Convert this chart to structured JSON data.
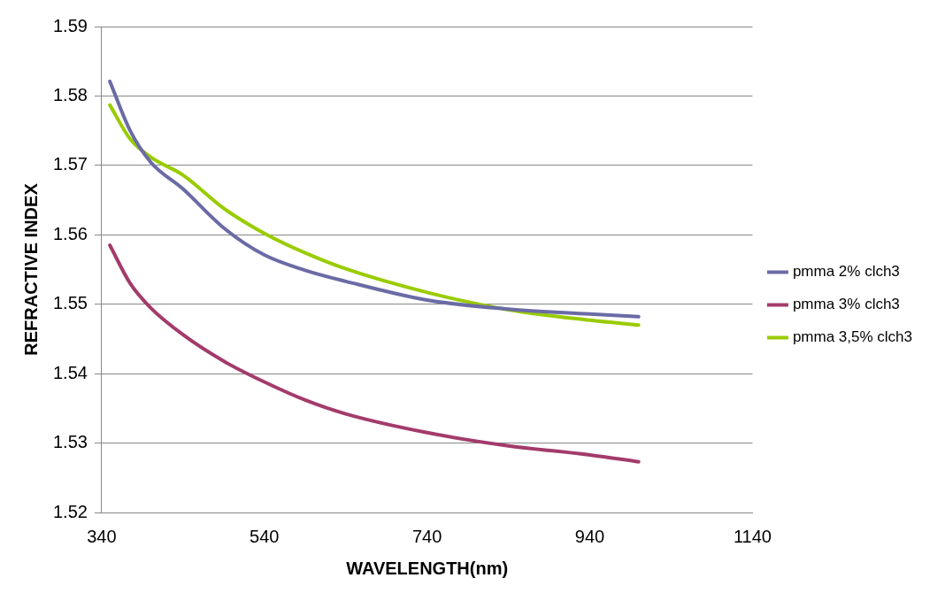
{
  "chart_data": {
    "type": "line",
    "xlabel": "WAVELENGTH(nm)",
    "ylabel": "REFRACTIVE INDEX",
    "x": [
      350,
      375,
      400,
      440,
      490,
      540,
      590,
      640,
      740,
      840,
      940,
      1000
    ],
    "xlim": [
      340,
      1140
    ],
    "xticks": [
      340,
      540,
      740,
      940,
      1140
    ],
    "ylim": [
      1.52,
      1.59
    ],
    "yticks": [
      1.52,
      1.53,
      1.54,
      1.55,
      1.56,
      1.57,
      1.58,
      1.59
    ],
    "grid": "y",
    "legend": "right",
    "marker": "none",
    "line_style": "solid",
    "series": [
      {
        "name": "pmma 2% clch3",
        "color": "#6b6ba6",
        "values": [
          1.5821,
          1.575,
          1.5705,
          1.5666,
          1.561,
          1.5571,
          1.5549,
          1.5533,
          1.5506,
          1.5493,
          1.5486,
          1.5482
        ]
      },
      {
        "name": "pmma 3% clch3",
        "color": "#a33b6b",
        "values": [
          1.5585,
          1.553,
          1.5495,
          1.5456,
          1.5418,
          1.5388,
          1.5362,
          1.5342,
          1.5315,
          1.5296,
          1.5283,
          1.5273
        ]
      },
      {
        "name": "pmma 3,5% clch3",
        "color": "#99cc00",
        "values": [
          1.5787,
          1.5738,
          1.5712,
          1.5686,
          1.5638,
          1.5602,
          1.5574,
          1.5551,
          1.5517,
          1.5492,
          1.5477,
          1.547
        ]
      }
    ]
  }
}
